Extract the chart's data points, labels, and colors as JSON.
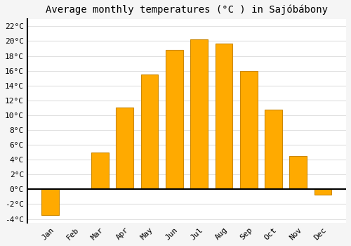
{
  "months": [
    "Jan",
    "Feb",
    "Mar",
    "Apr",
    "May",
    "Jun",
    "Jul",
    "Aug",
    "Sep",
    "Oct",
    "Nov",
    "Dec"
  ],
  "values": [
    -3.5,
    0.0,
    5.0,
    11.0,
    15.5,
    18.8,
    20.2,
    19.7,
    16.0,
    10.7,
    4.5,
    -0.7
  ],
  "bar_color": "#FFAA00",
  "bar_edge_color": "#CC8800",
  "title": "Average monthly temperatures (°C ) in Sajóbábony",
  "ylabel_ticks": [
    "-4°C",
    "-2°C",
    "0°C",
    "2°C",
    "4°C",
    "6°C",
    "8°C",
    "10°C",
    "12°C",
    "14°C",
    "16°C",
    "18°C",
    "20°C",
    "22°C"
  ],
  "ytick_values": [
    -4,
    -2,
    0,
    2,
    4,
    6,
    8,
    10,
    12,
    14,
    16,
    18,
    20,
    22
  ],
  "ylim": [
    -4.5,
    23
  ],
  "background_color": "#f5f5f5",
  "plot_bg_color": "#ffffff",
  "grid_color": "#e0e0e0",
  "title_fontsize": 10,
  "tick_fontsize": 8,
  "zero_line_color": "#000000",
  "bar_width": 0.7,
  "left_spine_color": "#000000"
}
